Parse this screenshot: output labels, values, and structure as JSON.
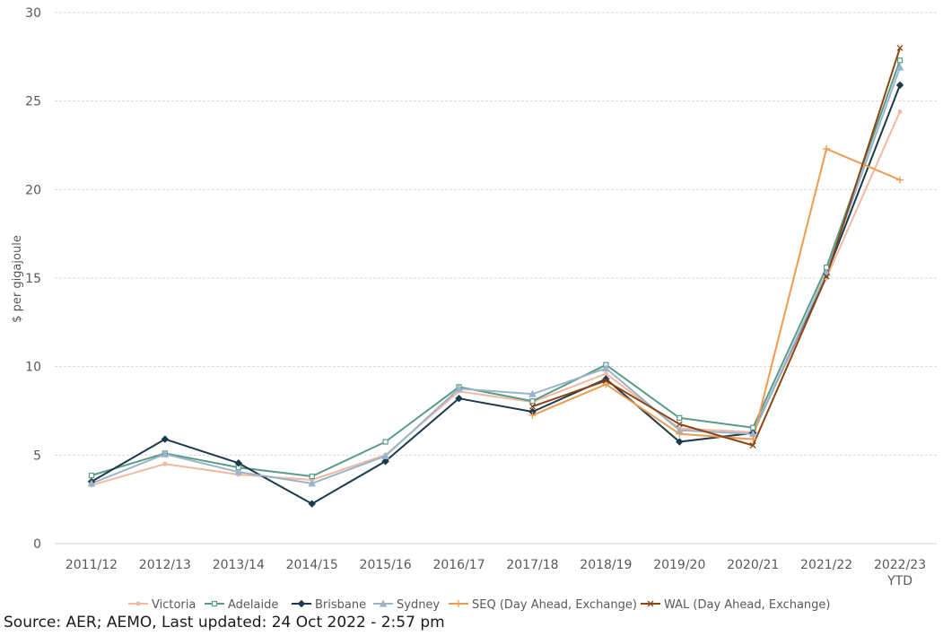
{
  "chart_data": {
    "type": "line",
    "title": "",
    "xlabel": "",
    "ylabel": "$ per gigajoule",
    "ylim": [
      0,
      30
    ],
    "yticks": [
      0,
      5,
      10,
      15,
      20,
      25,
      30
    ],
    "grid": true,
    "legend_position": "bottom",
    "categories": [
      "2011/12",
      "2012/13",
      "2013/14",
      "2014/15",
      "2015/16",
      "2016/17",
      "2017/18",
      "2018/19",
      "2019/20",
      "2020/21",
      "2021/22",
      "2022/23\nYTD"
    ],
    "series": [
      {
        "name": "Victoria",
        "color": "#f2b8a2",
        "marker": "dot",
        "values": [
          3.3,
          4.5,
          3.9,
          3.6,
          5.0,
          8.6,
          8.0,
          9.6,
          6.5,
          6.3,
          15.0,
          24.4
        ]
      },
      {
        "name": "Adelaide",
        "color": "#5a9b87",
        "marker": "square",
        "values": [
          3.85,
          5.1,
          4.3,
          3.8,
          5.75,
          8.85,
          8.05,
          10.1,
          7.1,
          6.55,
          15.6,
          27.3
        ]
      },
      {
        "name": "Brisbane",
        "color": "#1b3a4b",
        "marker": "diamond",
        "values": [
          3.5,
          5.9,
          4.55,
          2.25,
          4.65,
          8.2,
          7.45,
          9.3,
          5.75,
          6.25,
          15.2,
          25.9
        ]
      },
      {
        "name": "Sydney",
        "color": "#9ab4cc",
        "marker": "triangle",
        "values": [
          3.4,
          5.05,
          4.05,
          3.4,
          4.95,
          8.75,
          8.45,
          9.9,
          6.4,
          6.2,
          15.3,
          26.9
        ]
      },
      {
        "name": "SEQ (Day Ahead, Exchange)",
        "color": "#ec9b50",
        "marker": "plus",
        "values": [
          null,
          null,
          null,
          null,
          null,
          null,
          7.25,
          9.0,
          6.2,
          5.9,
          22.3,
          20.55
        ]
      },
      {
        "name": "WAL (Day Ahead, Exchange)",
        "color": "#8b4513",
        "marker": "cross",
        "values": [
          null,
          null,
          null,
          null,
          null,
          null,
          7.75,
          9.2,
          6.75,
          5.55,
          15.1,
          28.0
        ]
      }
    ]
  },
  "source_text": "Source: AER; AEMO, Last updated: 24 Oct 2022 - 2:57 pm"
}
